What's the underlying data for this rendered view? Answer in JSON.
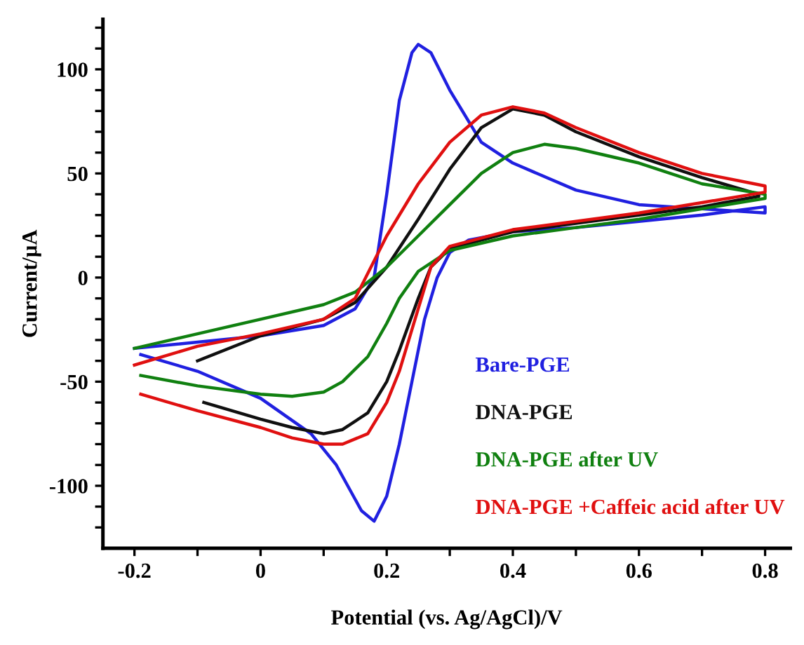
{
  "chart_data": {
    "type": "line",
    "xlabel": "Potential (vs. Ag/AgCl)/V",
    "ylabel": "Current/µA",
    "xlim": [
      -0.25,
      0.84
    ],
    "ylim": [
      -130,
      124
    ],
    "xticks": [
      -0.2,
      {
        "value": -0.1,
        "label": null
      },
      0,
      {
        "value": 0.1,
        "label": null
      },
      0.2,
      {
        "value": 0.3,
        "label": null
      },
      0.4,
      {
        "value": 0.5,
        "label": null
      },
      0.6,
      {
        "value": 0.7,
        "label": null
      },
      0.8
    ],
    "yticks": [
      {
        "value": -120,
        "label": null
      },
      {
        "value": -110,
        "label": null
      },
      -100,
      {
        "value": -90,
        "label": null
      },
      {
        "value": -80,
        "label": null
      },
      {
        "value": -70,
        "label": null
      },
      {
        "value": -60,
        "label": null
      },
      -50,
      {
        "value": -40,
        "label": null
      },
      {
        "value": -30,
        "label": null
      },
      {
        "value": -20,
        "label": null
      },
      {
        "value": -10,
        "label": null
      },
      0,
      {
        "value": 10,
        "label": null
      },
      {
        "value": 20,
        "label": null
      },
      {
        "value": 30,
        "label": null
      },
      {
        "value": 40,
        "label": null
      },
      50,
      {
        "value": 60,
        "label": null
      },
      {
        "value": 70,
        "label": null
      },
      {
        "value": 80,
        "label": null
      },
      {
        "value": 90,
        "label": null
      },
      100,
      {
        "value": 110,
        "label": null
      },
      {
        "value": 120,
        "label": null
      }
    ],
    "grid": false,
    "legend": "bottom right",
    "marker": "none",
    "line_style": "solid",
    "series": [
      {
        "name": "Bare-PGE",
        "color": "#2020e0",
        "x": [
          -0.2,
          0,
          0.1,
          0.15,
          0.18,
          0.2,
          0.22,
          0.24,
          0.25,
          0.27,
          0.3,
          0.35,
          0.4,
          0.5,
          0.6,
          0.7,
          0.8,
          0.8,
          0.7,
          0.6,
          0.5,
          0.4,
          0.33,
          0.3,
          0.28,
          0.26,
          0.24,
          0.22,
          0.2,
          0.18,
          0.16,
          0.12,
          0.08,
          0.0,
          -0.1,
          -0.19
        ],
        "values": [
          -34,
          -28,
          -23,
          -15,
          0,
          40,
          85,
          108,
          112,
          108,
          90,
          65,
          55,
          42,
          35,
          33,
          31,
          34,
          30,
          27,
          24,
          22,
          18,
          12,
          0,
          -20,
          -50,
          -80,
          -105,
          -117,
          -112,
          -90,
          -75,
          -58,
          -45,
          -37
        ]
      },
      {
        "name": "DNA-PGE",
        "color": "#101010",
        "x": [
          -0.1,
          0,
          0.1,
          0.15,
          0.2,
          0.25,
          0.3,
          0.35,
          0.4,
          0.45,
          0.5,
          0.6,
          0.7,
          0.79,
          0.79,
          0.7,
          0.6,
          0.5,
          0.4,
          0.3,
          0.27,
          0.25,
          0.22,
          0.2,
          0.17,
          0.13,
          0.1,
          0.05,
          0,
          -0.09
        ],
        "values": [
          -40,
          -28,
          -20,
          -12,
          5,
          28,
          52,
          72,
          81,
          78,
          70,
          58,
          48,
          40,
          39,
          34,
          30,
          26,
          22,
          14,
          5,
          -10,
          -35,
          -50,
          -65,
          -73,
          -75,
          -72,
          -68,
          -60
        ]
      },
      {
        "name": "DNA-PGE after UV",
        "color": "#108010",
        "x": [
          -0.2,
          -0.1,
          0,
          0.1,
          0.15,
          0.2,
          0.25,
          0.3,
          0.35,
          0.4,
          0.45,
          0.5,
          0.6,
          0.7,
          0.8,
          0.8,
          0.7,
          0.6,
          0.5,
          0.4,
          0.3,
          0.25,
          0.22,
          0.2,
          0.17,
          0.13,
          0.1,
          0.05,
          0,
          -0.1,
          -0.19
        ],
        "values": [
          -34,
          -27,
          -20,
          -13,
          -7,
          5,
          20,
          35,
          50,
          60,
          64,
          62,
          55,
          45,
          40,
          38,
          33,
          28,
          24,
          20,
          13,
          3,
          -10,
          -22,
          -38,
          -50,
          -55,
          -57,
          -56,
          -52,
          -47
        ]
      },
      {
        "name": "DNA-PGE +Caffeic acid after UV",
        "color": "#e01010",
        "x": [
          -0.2,
          -0.1,
          0,
          0.1,
          0.15,
          0.2,
          0.25,
          0.3,
          0.35,
          0.4,
          0.45,
          0.5,
          0.6,
          0.7,
          0.8,
          0.8,
          0.7,
          0.6,
          0.5,
          0.4,
          0.3,
          0.27,
          0.25,
          0.22,
          0.2,
          0.17,
          0.13,
          0.1,
          0.05,
          0,
          -0.1,
          -0.19
        ],
        "values": [
          -42,
          -33,
          -27,
          -20,
          -10,
          20,
          45,
          65,
          78,
          82,
          79,
          72,
          60,
          50,
          44,
          41,
          36,
          31,
          27,
          23,
          15,
          5,
          -15,
          -45,
          -60,
          -75,
          -80,
          -80,
          -77,
          -72,
          -64,
          -56
        ]
      }
    ]
  }
}
